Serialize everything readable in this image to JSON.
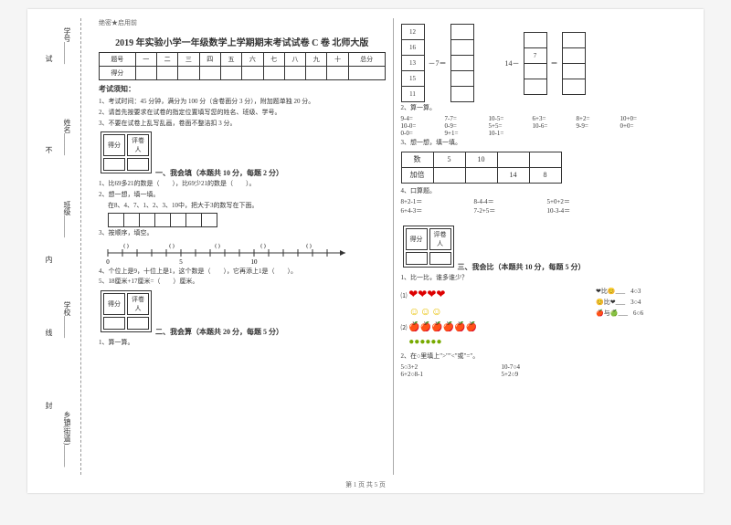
{
  "binding": {
    "labels": [
      "学号______",
      "姓名______",
      "班级______",
      "学校______",
      "乡镇(街道)______"
    ],
    "side_chars": [
      "试",
      "不",
      "内",
      "线",
      "封"
    ]
  },
  "header": {
    "confidential": "绝密★启用前",
    "title": "2019 年实验小学一年级数学上学期期末考试试卷 C 卷 北师大版"
  },
  "score_table": {
    "row1": [
      "题号",
      "一",
      "二",
      "三",
      "四",
      "五",
      "六",
      "七",
      "八",
      "九",
      "十",
      "总分"
    ],
    "row2": "得分"
  },
  "notes_title": "考试须知：",
  "notes": [
    "1、考试时间：45 分钟，满分为 100 分（含卷面分 3 分），附加题单独 20 分。",
    "2、请首先按要求在试卷的指定位置填写您的姓名、班级、学号。",
    "3、不要在试卷上乱写乱画，卷面不整洁扣 3 分。"
  ],
  "grade_labels": {
    "score": "得分",
    "grader": "评卷人"
  },
  "sec1": {
    "title": "一、我会填（本题共 10 分，每题 2 分）",
    "q1": "1、比69多21的数是（　　），比69少21的数是（　　）。",
    "q2a": "2、想一想，填一填。",
    "q2b": "在8、4、7、1、2、3、10中，把大于3的数写在下面。",
    "q3": "3、按顺序，填空。",
    "numberline": {
      "start": 0,
      "ticks": [
        0,
        5,
        10,
        ""
      ],
      "blanks": [
        "(  )",
        "(  )",
        "(  )",
        "(  )",
        "(  )"
      ]
    },
    "q4": "4、个位上是9，十位上是1，这个数是（　　），它再添上1是（　　）。",
    "q5": "5、18厘米+17厘米=（　　）厘米。"
  },
  "sec2": {
    "title": "二、我会算（本题共 20 分，每题 5 分）",
    "q1": "1、算一算。",
    "left_nums": [
      "12",
      "16",
      "13",
      "15",
      "11"
    ],
    "left_op": "－7＝",
    "right_eq": "14－",
    "right_op": "＝",
    "right_nums": [
      "",
      "7",
      "",
      ""
    ],
    "right_out": [
      "",
      "",
      "",
      ""
    ],
    "q2": "2、算一算。",
    "eqs": [
      "9-4=",
      "7-7=",
      "10-5=",
      "6+3=",
      "8+2=",
      "10+0=",
      "10-0=",
      "0-9=",
      "5+5=",
      "10-6=",
      "9-9=",
      "0+0=",
      "0-0=",
      "9+1=",
      "10-1="
    ],
    "q3": "3、想一想，填一填。",
    "tbl": {
      "r1": [
        "数",
        "5",
        "10",
        "",
        ""
      ],
      "r2": [
        "加倍",
        "",
        "",
        "14",
        "8"
      ]
    },
    "q4": "4、口算题。",
    "eqs2": [
      "8+2-1＝",
      "8-4-4＝",
      "5+0+2＝",
      "6+4-3＝",
      "7-2+5＝",
      "10-3-4＝"
    ]
  },
  "sec3": {
    "title": "三、我会比（本题共 10 分，每题 5 分）",
    "q1": "1、比一比，谁多谁少？",
    "hearts": 4,
    "smiles": 3,
    "apples": 6,
    "olives": 6,
    "cmp": [
      {
        "l": "❤",
        "r": "😊",
        "t": "比",
        "ans": "4○3"
      },
      {
        "l": "😊",
        "r": "❤",
        "t": "比",
        "ans": "3○4"
      },
      {
        "l": "🍎",
        "r": "🍏",
        "t": "与",
        "ans": "6○6"
      }
    ],
    "q2": "2、在○里填上\">\"\"<\"或\"=\"。",
    "eqs": [
      "5○3+2",
      "10-7○4",
      "6+2○8-1",
      "5+2○9"
    ]
  },
  "footer": "第 1 页 共 5 页"
}
